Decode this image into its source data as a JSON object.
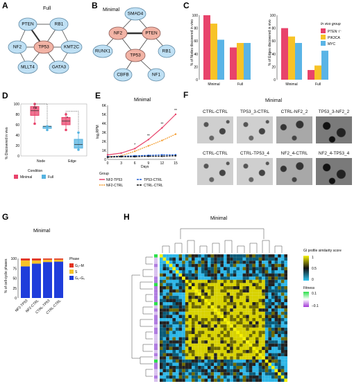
{
  "panels": {
    "A": {
      "letter": "A",
      "title": "Full",
      "nodes": [
        "PTEN",
        "RB1",
        "NF2",
        "TP53",
        "KMT2C",
        "MLLT4",
        "GATA3"
      ]
    },
    "B": {
      "letter": "B",
      "title": "Minimal",
      "nodes": [
        "SMAD4",
        "NF2",
        "PTEN",
        "RUNX1",
        "TP53",
        "RB1",
        "CBFB",
        "NF1"
      ]
    },
    "C": {
      "letter": "C",
      "ylabel_left": "% of Nodes discovered in vivo",
      "ylabel_right": "% of Edges discovered in vivo",
      "legend_title": "In vivo group",
      "legend": [
        "PTEN⁻/⁻",
        "PIK3CA",
        "MYC"
      ]
    },
    "D": {
      "letter": "D",
      "ylabel": "% Discovered in vivo",
      "sig_labels": [
        "ns",
        "*"
      ],
      "legend_title": "Condition",
      "legend": [
        "Minimal",
        "Full"
      ]
    },
    "E": {
      "letter": "E",
      "title": "Minimal",
      "ylabel": "log₂RPM",
      "xlabel": "Days",
      "stars": [
        "*",
        "**",
        "**",
        "**"
      ],
      "legend_title": "Group",
      "legend": [
        "NF2-TP53",
        "NF2-CTRL",
        "TP53-CTRL",
        "CTRL-CTRL"
      ]
    },
    "F": {
      "letter": "F",
      "title": "Minimal",
      "row1": [
        "CTRL-CTRL",
        "TP53_3-CTRL",
        "CTRL-NF2_2",
        "TP53_3-NF2_2"
      ],
      "row2": [
        "CTRL-CTRL",
        "CTRL-TP53_4",
        "NF2_4-CTRL",
        "NF2_4-TP53_4"
      ]
    },
    "G": {
      "letter": "G",
      "title": "Minimal",
      "ylabel": "% of cell-cycle phases",
      "legend_title": "Phase",
      "legend": [
        "G₂–M",
        "S",
        "G₁–G₀"
      ]
    },
    "H": {
      "letter": "H",
      "title": "Minimal",
      "colorbar_title": "GI profile similarity score",
      "colorbar_ticks": [
        "1",
        "0.5",
        "0"
      ],
      "fitness_title": "Fitness",
      "fitness_ticks": [
        "0.1",
        "–0.1"
      ]
    }
  },
  "chart_data": [
    {
      "panel": "C-left",
      "type": "bar",
      "categories": [
        "Minimal",
        "Full"
      ],
      "series": [
        {
          "name": "PTEN⁻/⁻",
          "values": [
            100,
            50
          ]
        },
        {
          "name": "PIK3CA",
          "values": [
            87,
            57
          ]
        },
        {
          "name": "MYC",
          "values": [
            62,
            57
          ]
        }
      ],
      "ylim": [
        0,
        100
      ],
      "yticks": [
        0,
        20,
        40,
        60,
        80,
        100
      ]
    },
    {
      "panel": "C-right",
      "type": "bar",
      "categories": [
        "Minimal",
        "Full"
      ],
      "series": [
        {
          "name": "PTEN⁻/⁻",
          "values": [
            80,
            15
          ]
        },
        {
          "name": "PIK3CA",
          "values": [
            67,
            22
          ]
        },
        {
          "name": "MYC",
          "values": [
            57,
            45
          ]
        }
      ],
      "ylim": [
        0,
        100
      ],
      "yticks": [
        0,
        20,
        40,
        60,
        80,
        100
      ]
    },
    {
      "panel": "D",
      "type": "box",
      "categories": [
        "Node",
        "Edge"
      ],
      "series": [
        {
          "name": "Minimal",
          "medians": [
            87,
            67
          ],
          "q1": [
            78,
            60
          ],
          "q3": [
            95,
            74
          ],
          "min": [
            62,
            50
          ],
          "max": [
            100,
            80
          ]
        },
        {
          "name": "Full",
          "medians": [
            57,
            22
          ],
          "q1": [
            53,
            15
          ],
          "q3": [
            57,
            32
          ],
          "min": [
            50,
            12
          ],
          "max": [
            57,
            45
          ]
        }
      ],
      "ylim": [
        0,
        100
      ],
      "yticks": [
        0,
        20,
        40,
        60,
        80,
        100
      ]
    },
    {
      "panel": "E",
      "type": "line",
      "x": [
        0,
        3,
        6,
        9,
        12,
        15
      ],
      "xlabel": "Days",
      "ylabel": "log₂RPM",
      "ylim": [
        0,
        6
      ],
      "yticks": [
        "0",
        "1K",
        "2K",
        "3K",
        "4K",
        "5K",
        "6K"
      ],
      "series": [
        {
          "name": "NF2-TP53",
          "values": [
            0.5,
            0.7,
            1.2,
            2.2,
            3.5,
            5.0
          ]
        },
        {
          "name": "NF2-CTRL",
          "values": [
            0.3,
            0.4,
            0.9,
            1.5,
            2.1,
            2.8
          ]
        },
        {
          "name": "TP53-CTRL",
          "values": [
            0.3,
            0.35,
            0.4,
            0.45,
            0.5,
            0.5
          ]
        },
        {
          "name": "CTRL-CTRL",
          "values": [
            0.25,
            0.3,
            0.3,
            0.35,
            0.35,
            0.4
          ]
        }
      ]
    },
    {
      "panel": "G",
      "type": "bar",
      "stacked": true,
      "categories": [
        "NF2-TP53",
        "NF2-CTRL",
        "CTRL-TP53",
        "CTRL-CTRL"
      ],
      "series": [
        {
          "name": "G₁–G₀",
          "values": [
            80,
            87,
            91,
            92
          ]
        },
        {
          "name": "S",
          "values": [
            15,
            8,
            6,
            5
          ]
        },
        {
          "name": "G₂–M",
          "values": [
            5,
            5,
            3,
            3
          ]
        }
      ],
      "ylim": [
        0,
        100
      ],
      "yticks": [
        0,
        25,
        50,
        75,
        100
      ]
    }
  ],
  "colors": {
    "pten": "#e8436b",
    "pik3ca": "#f7c327",
    "myc": "#5ab4e6",
    "minimal": "#e8436b",
    "full": "#55b3e0",
    "g2m": "#e2331f",
    "s": "#f7c327",
    "g1": "#1f3ddb"
  }
}
